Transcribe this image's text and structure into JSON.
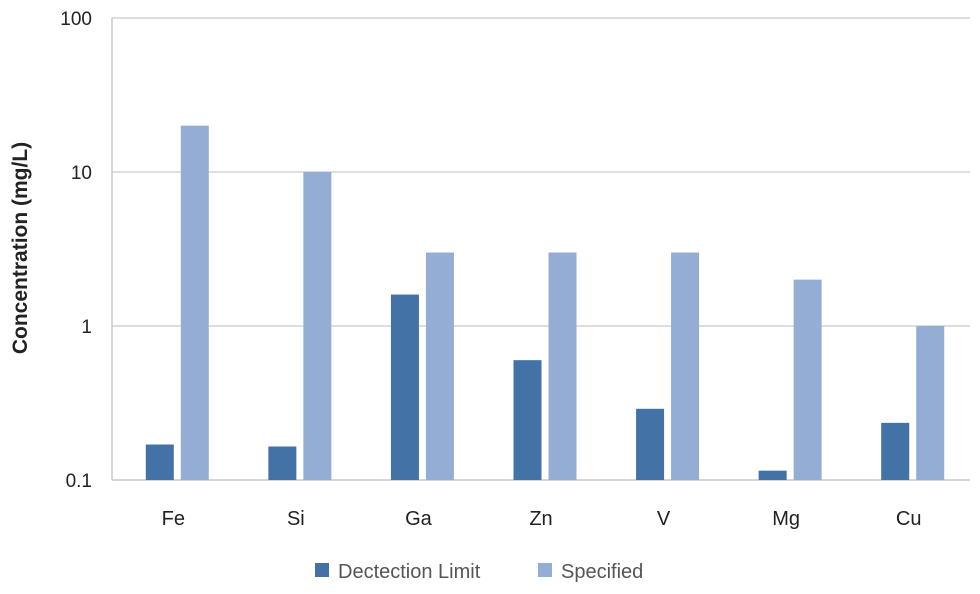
{
  "chart_data": {
    "type": "bar",
    "ylabel": "Concentration (mg/L)",
    "xlabel": "",
    "yscale": "log",
    "ylim": [
      0.1,
      100
    ],
    "yticks": [
      0.1,
      1,
      10,
      100
    ],
    "ytick_labels": [
      "0.1",
      "1",
      "10",
      "100"
    ],
    "grid": "horizontal",
    "legend_position": "bottom",
    "categories": [
      "Fe",
      "Si",
      "Ga",
      "Zn",
      "V",
      "Mg",
      "Cu"
    ],
    "series": [
      {
        "name": "Dectection Limit",
        "color": "#4272A6",
        "values": [
          0.17,
          0.165,
          1.6,
          0.6,
          0.29,
          0.115,
          0.235
        ]
      },
      {
        "name": "Specified",
        "color": "#94ADD5",
        "values": [
          20,
          10,
          3,
          3,
          3,
          2,
          1
        ]
      }
    ]
  }
}
